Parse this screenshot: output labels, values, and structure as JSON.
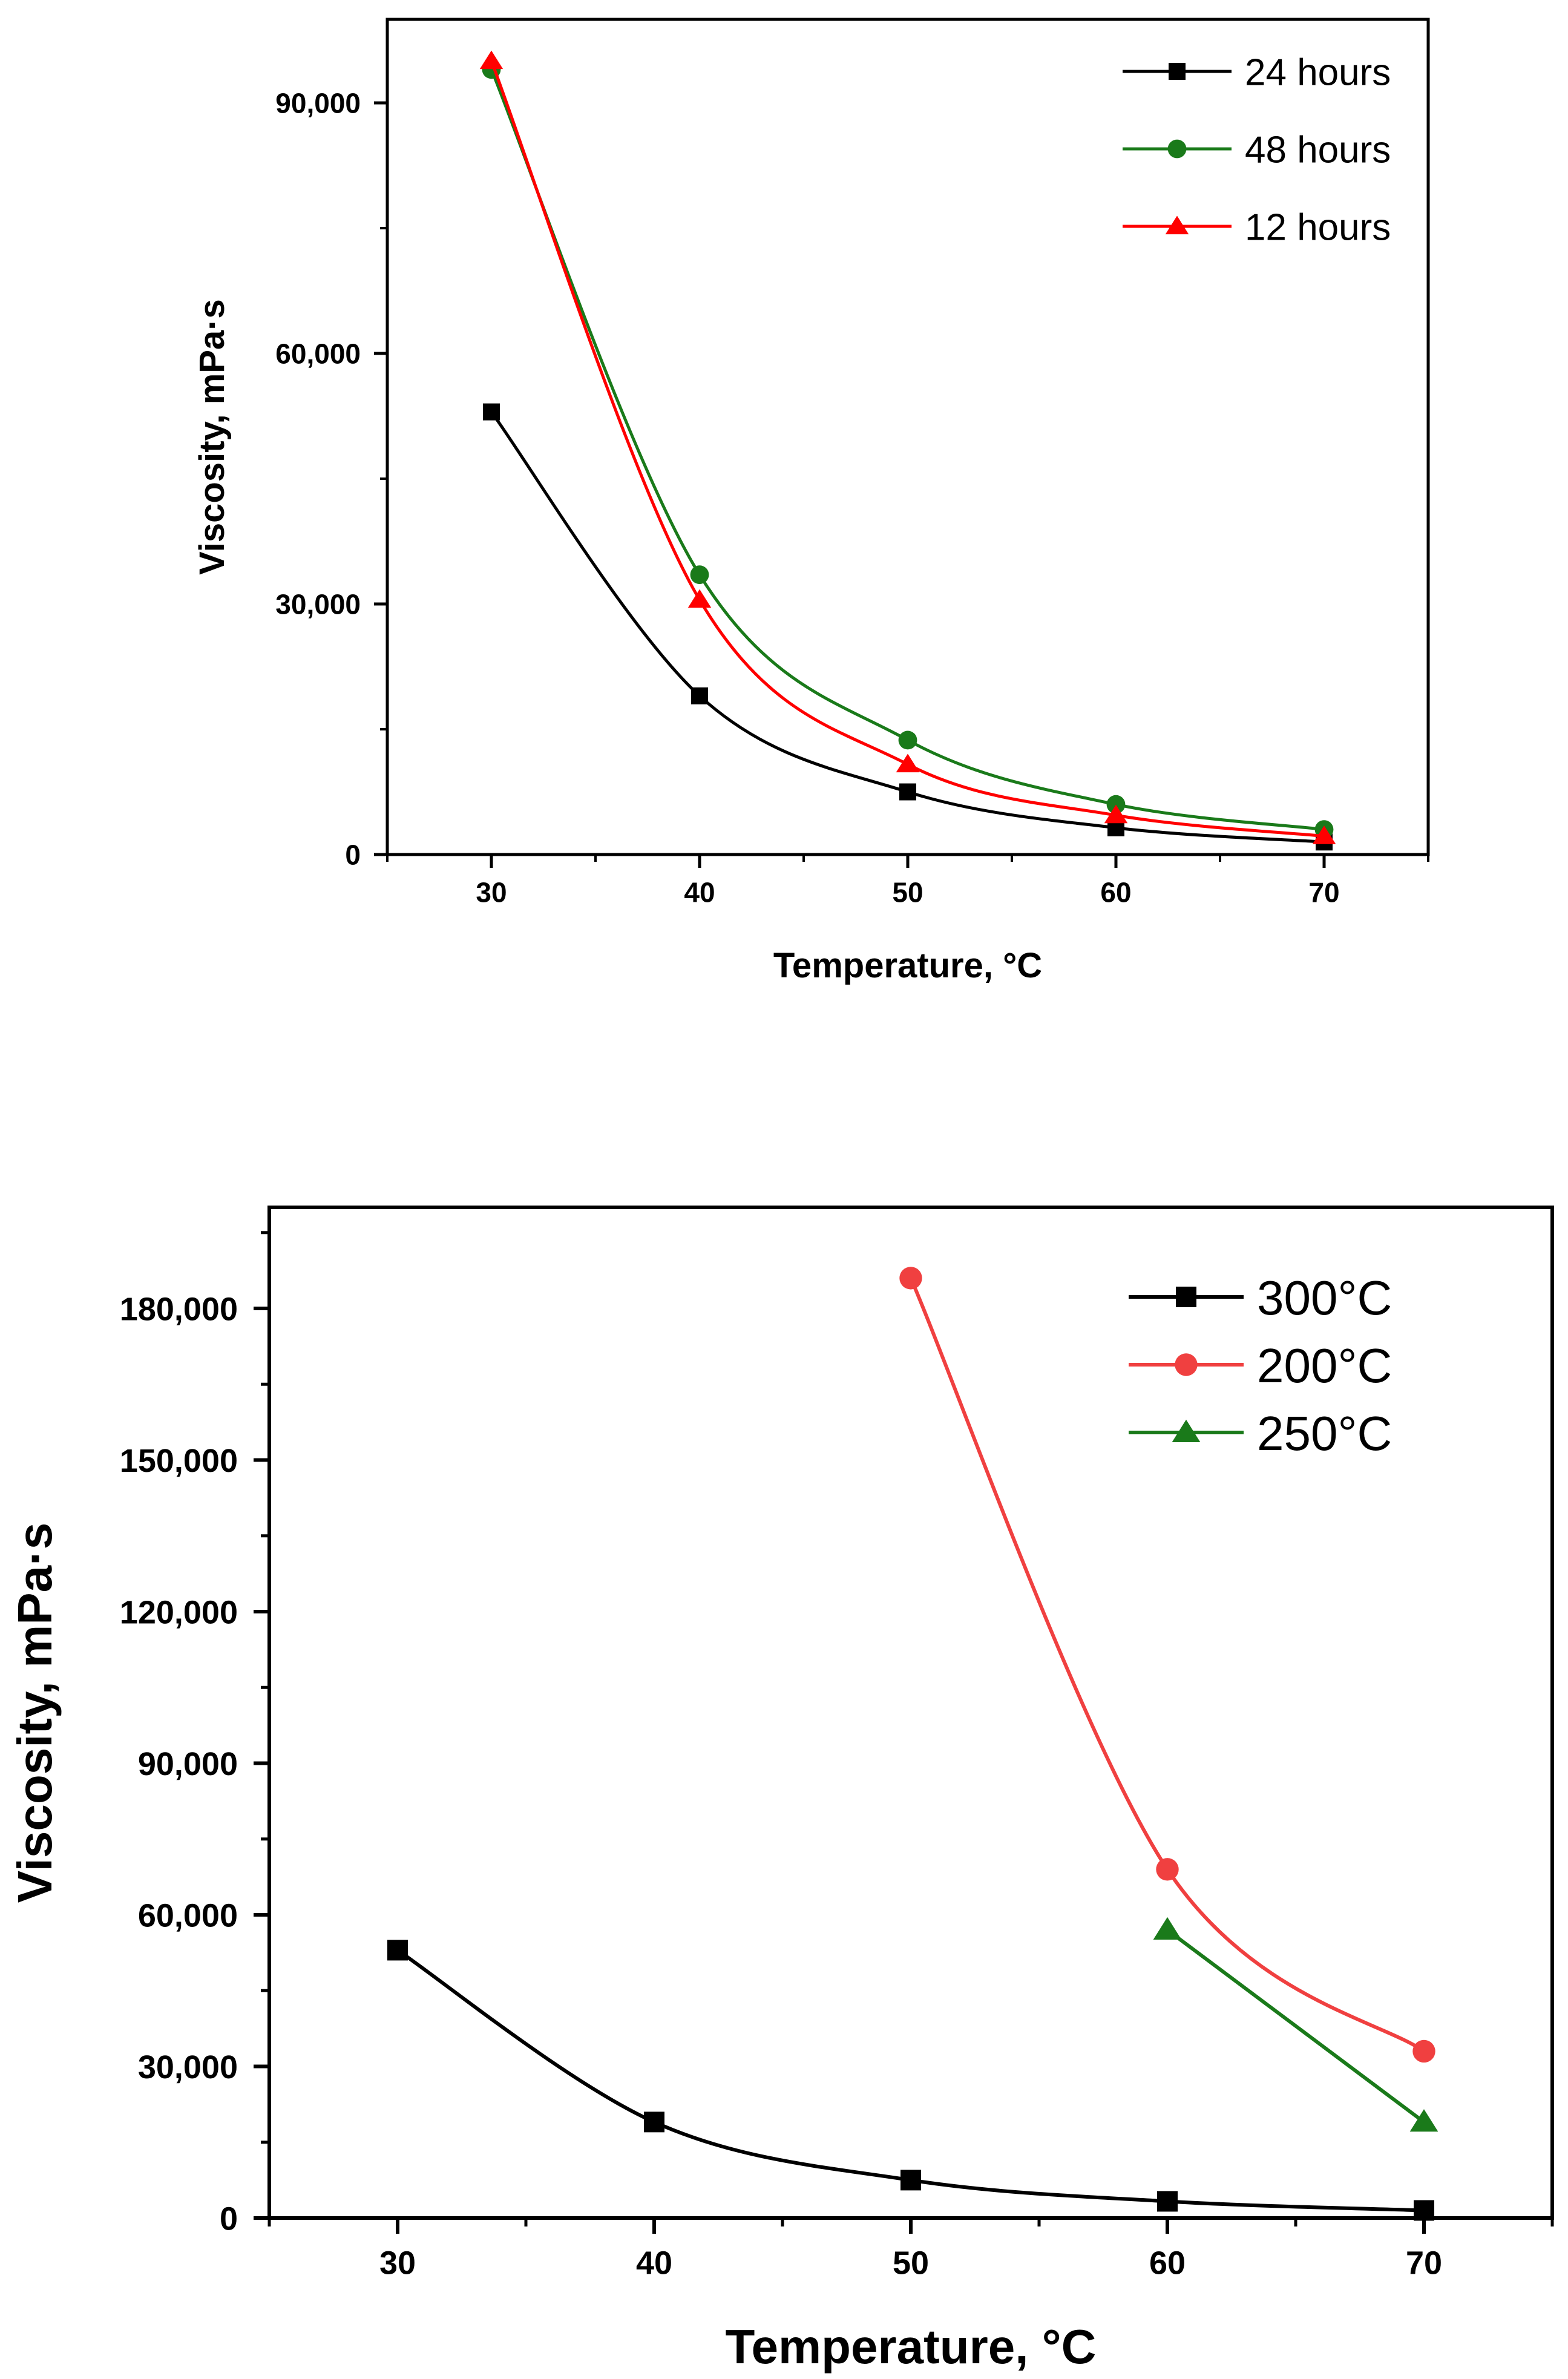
{
  "chart_data": [
    {
      "type": "line",
      "title": "",
      "xlabel": "Temperature, °C",
      "ylabel": "Viscosity, mPa·s",
      "xlim": [
        25,
        75
      ],
      "ylim": [
        0,
        100000
      ],
      "x_ticks": [
        30,
        40,
        50,
        60,
        70
      ],
      "y_ticks": [
        0,
        30000,
        60000,
        90000
      ],
      "x_tick_labels": [
        "30",
        "40",
        "50",
        "60",
        "70"
      ],
      "y_tick_labels": [
        "0",
        "30,000",
        "60,000",
        "90,000"
      ],
      "grid": false,
      "legend_position": "top-right",
      "series": [
        {
          "name": "24 hours",
          "color": "#000000",
          "marker": "square",
          "x": [
            30,
            40,
            50,
            60,
            70
          ],
          "values": [
            53000,
            19000,
            7500,
            3200,
            1500
          ]
        },
        {
          "name": "48 hours",
          "color": "#1a7a1a",
          "marker": "circle",
          "x": [
            30,
            40,
            50,
            60,
            70
          ],
          "values": [
            94000,
            33500,
            13700,
            6000,
            3000
          ]
        },
        {
          "name": "12 hours",
          "color": "#ff0000",
          "marker": "triangle",
          "x": [
            30,
            40,
            50,
            60,
            70
          ],
          "values": [
            95000,
            30500,
            10800,
            4700,
            2200
          ]
        }
      ]
    },
    {
      "type": "line",
      "title": "",
      "xlabel": "Temperature, °C",
      "ylabel": "Viscosity, mPa·s",
      "xlim": [
        25,
        75
      ],
      "ylim": [
        0,
        200000
      ],
      "x_ticks": [
        30,
        40,
        50,
        60,
        70
      ],
      "y_ticks": [
        0,
        30000,
        60000,
        90000,
        120000,
        150000,
        180000
      ],
      "x_tick_labels": [
        "30",
        "40",
        "50",
        "60",
        "70"
      ],
      "y_tick_labels": [
        "0",
        "30,000",
        "60,000",
        "90,000",
        "120,000",
        "150,000",
        "180,000"
      ],
      "grid": false,
      "legend_position": "top-right",
      "series": [
        {
          "name": "300°C",
          "color": "#000000",
          "marker": "square",
          "x": [
            30,
            40,
            50,
            60,
            70
          ],
          "values": [
            53000,
            19000,
            7500,
            3300,
            1500
          ]
        },
        {
          "name": "200°C",
          "color": "#f04040",
          "marker": "circle",
          "x": [
            50,
            60,
            70
          ],
          "values": [
            186000,
            69000,
            33000
          ]
        },
        {
          "name": "250°C",
          "color": "#1a7a1a",
          "marker": "triangle",
          "x": [
            60,
            70
          ],
          "values": [
            57000,
            19000
          ]
        }
      ]
    }
  ]
}
